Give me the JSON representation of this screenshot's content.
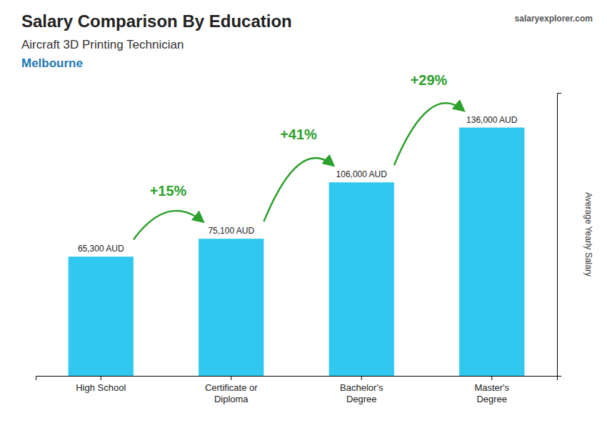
{
  "chart_data": {
    "type": "bar",
    "title": "Salary Comparison By Education",
    "subtitle": "Aircraft 3D Printing Technician",
    "location": "Melbourne",
    "source": "salaryexplorer.com",
    "ylabel": "Average Yearly Salary",
    "categories": [
      "High School",
      "Certificate or\nDiploma",
      "Bachelor's\nDegree",
      "Master's\nDegree"
    ],
    "values": [
      65300,
      75100,
      106000,
      136000
    ],
    "value_labels": [
      "65,300 AUD",
      "75,100 AUD",
      "106,000 AUD",
      "136,000 AUD"
    ],
    "annotations": [
      "+15%",
      "+41%",
      "+29%"
    ],
    "color": "#30c8ee",
    "ylim": [
      0,
      155000
    ],
    "yticks": [],
    "grid": false,
    "data_labels": true,
    "tick_labels": "x"
  }
}
